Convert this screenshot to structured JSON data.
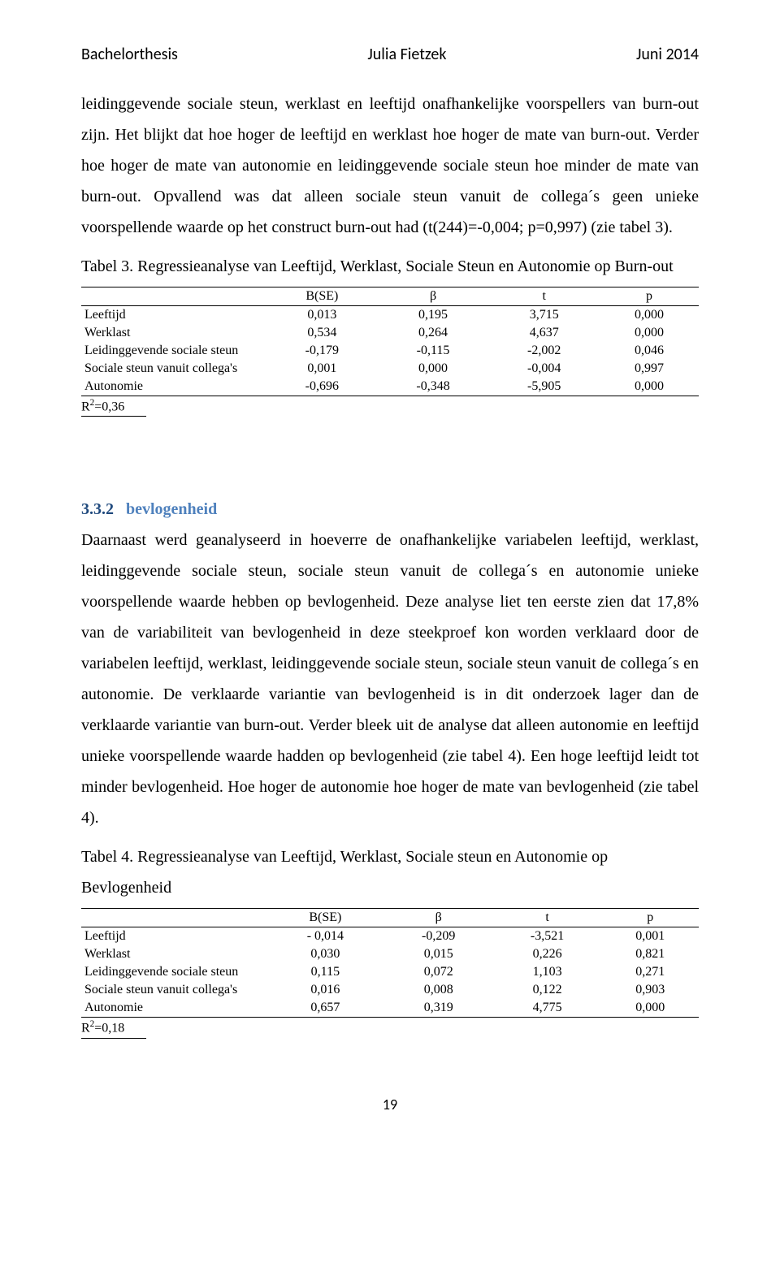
{
  "header": {
    "left": "Bachelorthesis",
    "center": "Julia Fietzek",
    "right": "Juni 2014"
  },
  "para1": "leidinggevende sociale steun, werklast en leeftijd onafhankelijke voorspellers van burn-out zijn. Het blijkt dat hoe hoger de leeftijd en werklast hoe hoger de mate van burn-out. Verder hoe hoger de mate van autonomie en leidinggevende sociale steun hoe minder de mate van burn-out. Opvallend was dat alleen sociale steun vanuit de collega´s geen unieke voorspellende waarde op het construct burn-out had (t(244)=-0,004; p=0,997) (zie tabel 3).",
  "table3": {
    "title": "Tabel 3. Regressieanalyse van Leeftijd, Werklast, Sociale Steun en Autonomie op Burn-out",
    "columns": [
      "",
      "B(SE)",
      "β",
      "t",
      "p"
    ],
    "rows": [
      [
        "Leeftijd",
        "0,013",
        "0,195",
        "3,715",
        "0,000"
      ],
      [
        "Werklast",
        "0,534",
        "0,264",
        "4,637",
        "0,000"
      ],
      [
        "Leidinggevende sociale steun",
        "-0,179",
        "-0,115",
        "-2,002",
        "0,046"
      ],
      [
        "Sociale steun vanuit collega's",
        "0,001",
        "0,000",
        "-0,004",
        "0,997"
      ],
      [
        "Autonomie",
        "-0,696",
        "-0,348",
        "-5,905",
        "0,000"
      ]
    ],
    "rnote_prefix": "R",
    "rnote_sup": "2",
    "rnote_suffix": "=0,36"
  },
  "section": {
    "num": "3.3.2",
    "label": "bevlogenheid"
  },
  "para2": "Daarnaast werd geanalyseerd in hoeverre de onafhankelijke variabelen leeftijd, werklast, leidinggevende sociale steun, sociale steun vanuit de collega´s en autonomie unieke voorspellende waarde hebben op bevlogenheid. Deze analyse liet ten eerste zien dat 17,8% van de variabiliteit van bevlogenheid in deze steekproef kon worden verklaard door de variabelen leeftijd, werklast, leidinggevende sociale steun, sociale steun vanuit de collega´s en autonomie. De verklaarde variantie van bevlogenheid is in dit onderzoek lager dan de verklaarde variantie van burn-out. Verder bleek uit de analyse dat alleen autonomie en leeftijd unieke voorspellende waarde hadden op bevlogenheid (zie tabel 4). Een hoge leeftijd leidt tot minder bevlogenheid. Hoe hoger de autonomie hoe hoger de mate van bevlogenheid (zie tabel 4).",
  "table4": {
    "title": "Tabel 4. Regressieanalyse van Leeftijd, Werklast, Sociale steun en Autonomie op Bevlogenheid",
    "columns": [
      "",
      "B(SE)",
      "β",
      "t",
      "p"
    ],
    "rows": [
      [
        "Leeftijd",
        "- 0,014",
        "-0,209",
        "-3,521",
        "0,001"
      ],
      [
        "Werklast",
        "0,030",
        "0,015",
        "0,226",
        "0,821"
      ],
      [
        "Leidinggevende sociale steun",
        "0,115",
        "0,072",
        "1,103",
        "0,271"
      ],
      [
        "Sociale steun vanuit collega's",
        "0,016",
        "0,008",
        "0,122",
        "0,903"
      ],
      [
        "Autonomie",
        "0,657",
        "0,319",
        "4,775",
        "0,000"
      ]
    ],
    "rnote_prefix": "R",
    "rnote_sup": "2",
    "rnote_suffix": "=0,18"
  },
  "page_number": "19"
}
